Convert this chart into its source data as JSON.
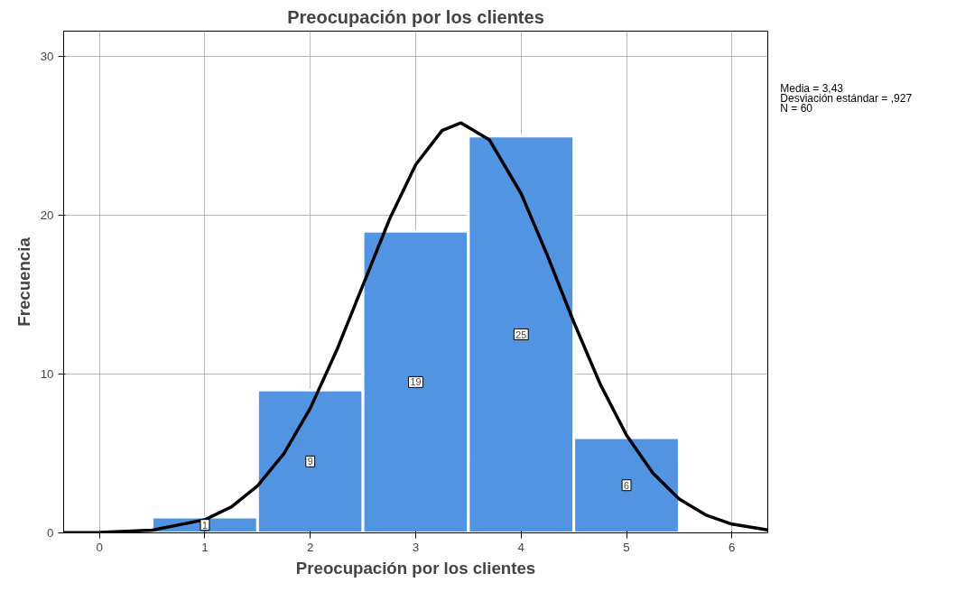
{
  "chart_data": {
    "type": "histogram",
    "title": "Preocupación por los clientes",
    "xlabel": "Preocupación por los clientes",
    "ylabel": "Frecuencia",
    "bins": [
      0.5,
      1.5,
      2.5,
      3.5,
      4.5,
      5.5
    ],
    "values": [
      1,
      9,
      19,
      25,
      6
    ],
    "color": "#5294e2",
    "value_labels": [
      "1",
      "9",
      "19",
      "25",
      "6"
    ],
    "series": [
      {
        "type": "line",
        "color": "#000000",
        "x": [
          -0.34,
          0,
          0.5,
          1,
          1.25,
          1.5,
          1.75,
          2,
          2.25,
          2.5,
          2.75,
          3,
          3.25,
          3.43,
          3.7,
          4,
          4.25,
          4.5,
          4.75,
          5,
          5.25,
          5.5,
          5.75,
          6,
          6.34
        ],
        "values": [
          0.01,
          0.03,
          0.17,
          0.83,
          1.63,
          2.96,
          5.0,
          7.85,
          11.49,
          15.61,
          19.73,
          23.19,
          25.34,
          25.82,
          24.75,
          21.37,
          17.46,
          13.27,
          9.37,
          6.15,
          3.76,
          2.13,
          1.13,
          0.55,
          0.19
        ]
      }
    ],
    "xlim": [
      -0.34,
      6.34
    ],
    "ylim": [
      0,
      31.6
    ],
    "xticks": [
      0,
      1,
      2,
      3,
      4,
      5,
      6
    ],
    "yticks": [
      0,
      10,
      20,
      30
    ],
    "grid": true,
    "annotations": [
      "Media = 3,43",
      "Desviación estándar = ,927",
      "N = 60"
    ]
  }
}
